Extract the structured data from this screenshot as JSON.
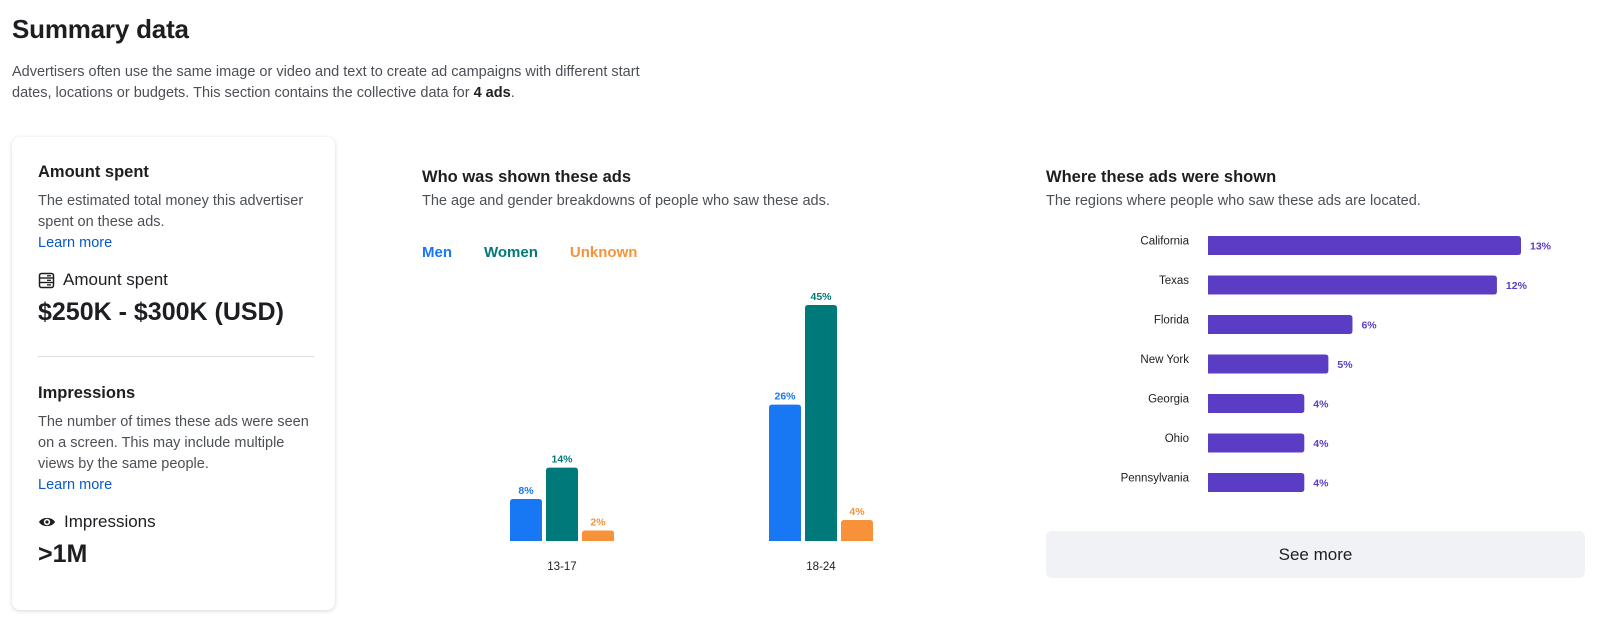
{
  "page": {
    "title": "Summary data",
    "intro_text": "Advertisers often use the same image or video and text to create ad campaigns with different start dates, locations or budgets. This section contains the collective data for ",
    "intro_bold": "4 ads",
    "intro_end": "."
  },
  "summary_card": {
    "amount": {
      "heading": "Amount spent",
      "description": "The estimated total money this advertiser spent on these ads.",
      "learn_more": "Learn more",
      "metric_label": "Amount spent",
      "metric_icon": "money-stack-icon",
      "value": "$250K - $300K (USD)"
    },
    "impressions": {
      "heading": "Impressions",
      "description": "The number of times these ads were seen on a screen. This may include multiple views by the same people.",
      "learn_more": "Learn more",
      "metric_label": "Impressions",
      "metric_icon": "eye-icon",
      "value": ">1M"
    }
  },
  "demographics": {
    "title": "Who was shown these ads",
    "description": "The age and gender breakdowns of people who saw these ads.",
    "legend": [
      {
        "label": "Men",
        "color": "#1877f2"
      },
      {
        "label": "Women",
        "color": "#00797a"
      },
      {
        "label": "Unknown",
        "color": "#f7923a"
      }
    ]
  },
  "regions": {
    "title": "Where these ads were shown",
    "description": "The regions where people who saw these ads are located.",
    "see_more": "See more",
    "bar_color": "#5b3cc4"
  },
  "chart_data": [
    {
      "type": "bar",
      "categories": [
        "13-17",
        "18-24"
      ],
      "series": [
        {
          "name": "Men",
          "values": [
            8,
            26
          ],
          "labels": [
            "8%",
            "26%"
          ],
          "color": "#1877f2"
        },
        {
          "name": "Women",
          "values": [
            14,
            45
          ],
          "labels": [
            "14%",
            "45%"
          ],
          "color": "#00797a"
        },
        {
          "name": "Unknown",
          "values": [
            2,
            4
          ],
          "labels": [
            "2%",
            "4%"
          ],
          "color": "#f7923a"
        }
      ],
      "ylim": [
        0,
        45
      ]
    },
    {
      "type": "bar",
      "orientation": "horizontal",
      "categories": [
        "California",
        "Texas",
        "Florida",
        "New York",
        "Georgia",
        "Ohio",
        "Pennsylvania"
      ],
      "values": [
        13,
        12,
        6,
        5,
        4,
        4,
        4
      ],
      "labels": [
        "13%",
        "12%",
        "6%",
        "5%",
        "4%",
        "4%",
        "4%"
      ],
      "xlim": [
        0,
        13
      ],
      "color": "#5b3cc4"
    }
  ]
}
